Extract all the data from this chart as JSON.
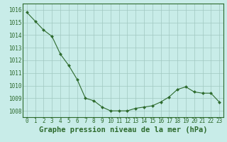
{
  "x": [
    0,
    1,
    2,
    3,
    4,
    5,
    6,
    7,
    8,
    9,
    10,
    11,
    12,
    13,
    14,
    15,
    16,
    17,
    18,
    19,
    20,
    21,
    22,
    23
  ],
  "y": [
    1015.8,
    1015.1,
    1014.4,
    1013.9,
    1012.5,
    1011.6,
    1010.5,
    1009.0,
    1008.8,
    1008.3,
    1008.0,
    1008.0,
    1008.0,
    1008.2,
    1008.3,
    1008.4,
    1008.7,
    1009.1,
    1009.7,
    1009.9,
    1009.5,
    1009.4,
    1009.4,
    1008.7
  ],
  "ylim": [
    1007.5,
    1016.5
  ],
  "yticks": [
    1008,
    1009,
    1010,
    1011,
    1012,
    1013,
    1014,
    1015,
    1016
  ],
  "xticks": [
    0,
    1,
    2,
    3,
    4,
    5,
    6,
    7,
    8,
    9,
    10,
    11,
    12,
    13,
    14,
    15,
    16,
    17,
    18,
    19,
    20,
    21,
    22,
    23
  ],
  "xlabel": "Graphe pression niveau de la mer (hPa)",
  "line_color": "#2d6a2d",
  "marker_color": "#2d6a2d",
  "bg_color": "#c8ece8",
  "grid_color": "#a0c8c0",
  "text_color": "#2d6a2d",
  "tick_fontsize": 5.5,
  "xlabel_fontsize": 7.5
}
